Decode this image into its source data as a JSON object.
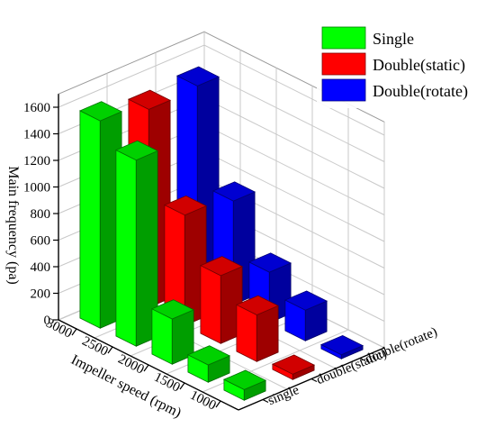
{
  "chart_data": {
    "type": "bar",
    "title": "",
    "ylabel": "Main frequency (pa)",
    "xlabel": "Impeller speed (rpm)",
    "categories": [
      "1000",
      "1500",
      "2000",
      "2500",
      "3000"
    ],
    "ylim": [
      0,
      1600
    ],
    "yticks": [
      "0",
      "200",
      "400",
      "600",
      "800",
      "1000",
      "1200",
      "1400",
      "1600"
    ],
    "depth_labels": [
      "single",
      "double(static)",
      "double(rotate)"
    ],
    "series": [
      {
        "name": "Single",
        "color": "#00ff00",
        "values": [
          80,
          130,
          340,
          1400,
          1560
        ]
      },
      {
        "name": "Double(static)",
        "color": "#ff0000",
        "values": [
          40,
          350,
          510,
          830,
          1490
        ]
      },
      {
        "name": "Double(rotate)",
        "color": "#0000ff",
        "values": [
          30,
          230,
          380,
          780,
          1510
        ]
      }
    ],
    "grid": true,
    "legend_position": "top-right"
  }
}
